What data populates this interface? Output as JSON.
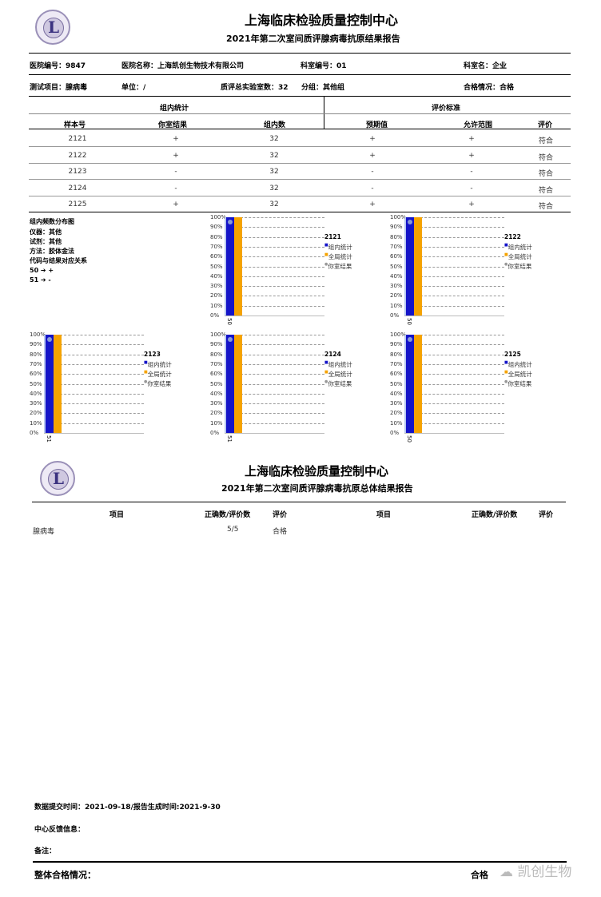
{
  "header": {
    "center": "上海临床检验质量控制中心",
    "title": "2021年第二次室间质评腺病毒抗原结果报告"
  },
  "info": {
    "hospital_no": "医院编号：9847",
    "hospital_name": "医院名称：上海凯创生物技术有限公司",
    "dept_no": "科室编号：01",
    "dept_name": "科室名：企业",
    "test_item": "测试项目：腺病毒",
    "unit": "单位：/",
    "labs": "质评总实验室数：32",
    "group": "分组：其他组",
    "pass": "合格情况：合格"
  },
  "table": {
    "group_header": "组内统计",
    "eval_header": "评价标准",
    "columns": [
      "样本号",
      "你室结果",
      "组内数",
      "预期值",
      "允许范围",
      "评价"
    ],
    "rows": [
      [
        "2121",
        "+",
        "32",
        "+",
        "+",
        "符合"
      ],
      [
        "2122",
        "+",
        "32",
        "+",
        "+",
        "符合"
      ],
      [
        "2123",
        "-",
        "32",
        "-",
        "-",
        "符合"
      ],
      [
        "2124",
        "-",
        "32",
        "-",
        "-",
        "符合"
      ],
      [
        "2125",
        "+",
        "32",
        "+",
        "+",
        "符合"
      ]
    ]
  },
  "notes": {
    "title": "组内频数分布图",
    "instrument": "仪器：其他",
    "reagent": "试剂：其他",
    "method": "方法：胶体金法",
    "code_title": "代码与结果对应关系",
    "codes": [
      "50 ➔ +",
      "51 ➔ -"
    ]
  },
  "chart_data": [
    {
      "type": "bar",
      "title": "2121",
      "categories": [
        "50"
      ],
      "series": [
        {
          "name": "组内统计",
          "values": [
            100
          ],
          "color": "#1414c8"
        },
        {
          "name": "全局统计",
          "values": [
            100
          ],
          "color": "#f5a300"
        }
      ],
      "your_result": {
        "name": "你室结果",
        "category": "50"
      },
      "yticks": [
        "0%",
        "10%",
        "20%",
        "30%",
        "40%",
        "50%",
        "60%",
        "70%",
        "80%",
        "90%",
        "100%"
      ],
      "ylim": [
        0,
        100
      ]
    },
    {
      "type": "bar",
      "title": "2122",
      "categories": [
        "50"
      ],
      "series": [
        {
          "name": "组内统计",
          "values": [
            100
          ],
          "color": "#1414c8"
        },
        {
          "name": "全局统计",
          "values": [
            100
          ],
          "color": "#f5a300"
        }
      ],
      "your_result": {
        "name": "你室结果",
        "category": "50"
      },
      "yticks": [
        "0%",
        "10%",
        "20%",
        "30%",
        "40%",
        "50%",
        "60%",
        "70%",
        "80%",
        "90%",
        "100%"
      ],
      "ylim": [
        0,
        100
      ]
    },
    {
      "type": "bar",
      "title": "2123",
      "categories": [
        "51"
      ],
      "series": [
        {
          "name": "组内统计",
          "values": [
            100
          ],
          "color": "#1414c8"
        },
        {
          "name": "全局统计",
          "values": [
            100
          ],
          "color": "#f5a300"
        }
      ],
      "your_result": {
        "name": "你室结果",
        "category": "51"
      },
      "yticks": [
        "0%",
        "10%",
        "20%",
        "30%",
        "40%",
        "50%",
        "60%",
        "70%",
        "80%",
        "90%",
        "100%"
      ],
      "ylim": [
        0,
        100
      ]
    },
    {
      "type": "bar",
      "title": "2124",
      "categories": [
        "51"
      ],
      "series": [
        {
          "name": "组内统计",
          "values": [
            100
          ],
          "color": "#1414c8"
        },
        {
          "name": "全局统计",
          "values": [
            100
          ],
          "color": "#f5a300"
        }
      ],
      "your_result": {
        "name": "你室结果",
        "category": "51"
      },
      "yticks": [
        "0%",
        "10%",
        "20%",
        "30%",
        "40%",
        "50%",
        "60%",
        "70%",
        "80%",
        "90%",
        "100%"
      ],
      "ylim": [
        0,
        100
      ]
    },
    {
      "type": "bar",
      "title": "2125",
      "categories": [
        "50"
      ],
      "series": [
        {
          "name": "组内统计",
          "values": [
            100
          ],
          "color": "#1414c8"
        },
        {
          "name": "全局统计",
          "values": [
            100
          ],
          "color": "#f5a300"
        }
      ],
      "your_result": {
        "name": "你室结果",
        "category": "50"
      },
      "yticks": [
        "0%",
        "10%",
        "20%",
        "30%",
        "40%",
        "50%",
        "60%",
        "70%",
        "80%",
        "90%",
        "100%"
      ],
      "ylim": [
        0,
        100
      ]
    }
  ],
  "summary": {
    "center": "上海临床检验质量控制中心",
    "title": "2021年第二次室间质评腺病毒抗原总体结果报告",
    "columns": [
      "项目",
      "正确数/评价数",
      "评价",
      "项目",
      "正确数/评价数",
      "评价"
    ],
    "rows": [
      [
        "腺病毒",
        "5/5",
        "合格"
      ]
    ]
  },
  "footer": {
    "submit": "数据提交时间：2021-09-18/报告生成时间:2021-9-30",
    "feedback": "中心反馈信息：",
    "remark": "备注：",
    "overall_label": "整体合格情况：",
    "overall_value": "合格",
    "watermark": "凯创生物"
  }
}
